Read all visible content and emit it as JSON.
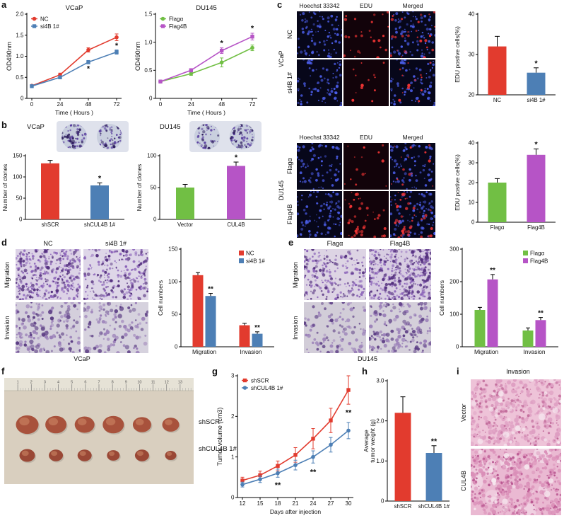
{
  "colors": {
    "red": "#e23b2e",
    "blue": "#4d7fb5",
    "green": "#71bf44",
    "purple": "#b654c6"
  },
  "panels": {
    "a": {
      "tag": "a"
    },
    "b": {
      "tag": "b",
      "left_title": "VCaP",
      "right_title": "DU145"
    },
    "c": {
      "tag": "c",
      "headers": [
        "Hoechst 33342",
        "EDU",
        "Merged"
      ],
      "top": {
        "side": "VCaP",
        "rows": [
          "NC",
          "si4B 1#"
        ]
      },
      "bottom": {
        "side": "DU145",
        "rows": [
          "Flagα",
          "Flag4B"
        ]
      }
    },
    "d": {
      "tag": "d",
      "cols": [
        "NC",
        "si4B 1#"
      ],
      "rows": [
        "Migration",
        "Invasion"
      ],
      "cell_line": "VCaP"
    },
    "e": {
      "tag": "e",
      "cols": [
        "Flagα",
        "Flag4B"
      ],
      "rows": [
        "Migration",
        "Invasion"
      ],
      "cell_line": "DU145"
    },
    "f": {
      "tag": "f",
      "labels": [
        "shSCR",
        "shCUL4B 1#"
      ],
      "ruler_numbers": [
        "1",
        "2",
        "3",
        "4",
        "5",
        "6",
        "7",
        "8",
        "9",
        "10",
        "11",
        "12",
        "13"
      ]
    },
    "g": {
      "tag": "g"
    },
    "h": {
      "tag": "h"
    },
    "i": {
      "tag": "i",
      "title": "Invasion",
      "rows": [
        "Vector",
        "CUL4B"
      ]
    }
  },
  "chart_data": [
    {
      "id": "a-left",
      "type": "line",
      "title": "VCaP",
      "xlabel": "Time ( Hours )",
      "ylabel": "OD490nm",
      "x": [
        0,
        24,
        48,
        72
      ],
      "ylim": [
        0,
        2.0
      ],
      "yticks": [
        0,
        0.5,
        1.0,
        1.5,
        2.0
      ],
      "ytick_labels": [
        "0",
        "0.5",
        "1.0",
        "1.5",
        "2.0"
      ],
      "legend_pos": "tl",
      "series": [
        {
          "name": "NC",
          "color": "#e23b2e",
          "marker": "circle",
          "values": [
            0.3,
            0.56,
            1.15,
            1.45
          ],
          "err": [
            0.02,
            0.04,
            0.05,
            0.08
          ]
        },
        {
          "name": "si4B 1#",
          "color": "#4d7fb5",
          "marker": "square",
          "values": [
            0.29,
            0.5,
            0.86,
            1.1
          ],
          "err": [
            0.02,
            0.03,
            0.04,
            0.05
          ]
        }
      ],
      "annotations": [
        {
          "x": 48,
          "y": 0.7,
          "text": "*"
        },
        {
          "x": 72,
          "y": 1.24,
          "text": "*"
        }
      ]
    },
    {
      "id": "a-right",
      "type": "line",
      "title": "DU145",
      "xlabel": "Time ( Hours )",
      "ylabel": "OD490nm",
      "x": [
        0,
        24,
        48,
        72
      ],
      "ylim": [
        0,
        1.5
      ],
      "yticks": [
        0,
        0.5,
        1.0,
        1.5
      ],
      "ytick_labels": [
        "0",
        "0.5",
        "1.0",
        "1.5"
      ],
      "legend_pos": "tl",
      "series": [
        {
          "name": "Flagα",
          "color": "#71bf44",
          "marker": "circle",
          "values": [
            0.3,
            0.44,
            0.64,
            0.9
          ],
          "err": [
            0.02,
            0.03,
            0.08,
            0.05
          ]
        },
        {
          "name": "Flag4B",
          "color": "#b654c6",
          "marker": "square",
          "values": [
            0.3,
            0.5,
            0.85,
            1.1
          ],
          "err": [
            0.02,
            0.03,
            0.05,
            0.06
          ]
        }
      ],
      "annotations": [
        {
          "x": 48,
          "y": 0.98,
          "text": "*"
        },
        {
          "x": 72,
          "y": 1.24,
          "text": "*"
        }
      ]
    },
    {
      "id": "b-left",
      "type": "bar",
      "tpad": 34,
      "ylabel": "Number of clones",
      "ylim": [
        0,
        150
      ],
      "yticks": [
        0,
        50,
        100,
        150
      ],
      "ytick_labels": [
        "0",
        "50",
        "100",
        "150"
      ],
      "categories": [
        "shSCR",
        "shCUL4B 1#"
      ],
      "values": [
        132,
        80
      ],
      "errors": [
        7,
        6
      ],
      "colors": [
        "#e23b2e",
        "#4d7fb5"
      ],
      "sig": [
        null,
        "*"
      ]
    },
    {
      "id": "b-right",
      "type": "bar",
      "tpad": 34,
      "ylabel": "Number of clones",
      "ylim": [
        0,
        100
      ],
      "yticks": [
        0,
        50,
        100
      ],
      "ytick_labels": [
        "0",
        "50",
        "100"
      ],
      "categories": [
        "Vector",
        "CUL4B"
      ],
      "values": [
        50,
        84
      ],
      "errors": [
        5,
        6
      ],
      "colors": [
        "#71bf44",
        "#b654c6"
      ],
      "sig": [
        null,
        "*"
      ]
    },
    {
      "id": "c-top",
      "type": "bar",
      "tpad": 14,
      "ylabel": "EDU postive cells(%)",
      "ylim": [
        20,
        40
      ],
      "yticks": [
        20,
        30,
        40
      ],
      "ytick_labels": [
        "20",
        "30",
        "40"
      ],
      "categories": [
        "NC",
        "si4B 1#"
      ],
      "values": [
        32,
        25.5
      ],
      "errors": [
        2.5,
        1.2
      ],
      "colors": [
        "#e23b2e",
        "#4d7fb5"
      ],
      "sig": [
        null,
        "*"
      ]
    },
    {
      "id": "c-bottom",
      "type": "bar",
      "tpad": 14,
      "ylabel": "EDU postive cells(%)",
      "ylim": [
        0,
        40
      ],
      "yticks": [
        0,
        10,
        20,
        30,
        40
      ],
      "ytick_labels": [
        "0",
        "10",
        "20",
        "30",
        "40"
      ],
      "categories": [
        "Flagα",
        "Flag4B"
      ],
      "values": [
        20,
        34
      ],
      "errors": [
        2,
        3
      ],
      "colors": [
        "#71bf44",
        "#b654c6"
      ],
      "sig": [
        null,
        "*"
      ]
    },
    {
      "id": "d-bar",
      "type": "groupbar",
      "ylabel": "Cell numbers",
      "ylim": [
        0,
        150
      ],
      "yticks": [
        0,
        50,
        100,
        150
      ],
      "ytick_labels": [
        "0",
        "50",
        "100",
        "150"
      ],
      "categories": [
        "Migration",
        "Invasion"
      ],
      "legend_pos": "tr",
      "series": [
        {
          "name": "NC",
          "color": "#e23b2e",
          "values": [
            110,
            33
          ],
          "err": [
            4,
            3
          ],
          "sig": [
            null,
            null
          ]
        },
        {
          "name": "si4B 1#",
          "color": "#4d7fb5",
          "values": [
            78,
            20
          ],
          "err": [
            4,
            3
          ],
          "sig": [
            "**",
            "**"
          ]
        }
      ]
    },
    {
      "id": "e-bar",
      "type": "groupbar",
      "ylabel": "Cell numbers",
      "ylim": [
        0,
        300
      ],
      "yticks": [
        0,
        100,
        200,
        300
      ],
      "ytick_labels": [
        "0",
        "100",
        "200",
        "300"
      ],
      "categories": [
        "Migration",
        "Invasion"
      ],
      "legend_pos": "tr",
      "series": [
        {
          "name": "Flagα",
          "color": "#71bf44",
          "values": [
            113,
            50
          ],
          "err": [
            8,
            8
          ],
          "sig": [
            null,
            null
          ]
        },
        {
          "name": "Flag4B",
          "color": "#b654c6",
          "values": [
            207,
            82
          ],
          "err": [
            15,
            8
          ],
          "sig": [
            "**",
            "**"
          ]
        }
      ]
    },
    {
      "id": "g-line",
      "type": "line",
      "xlabel": "Days after injection",
      "ylabel": "Tumor volume (cm3)",
      "x": [
        12,
        15,
        18,
        21,
        24,
        27,
        30
      ],
      "ylim": [
        0,
        3
      ],
      "yticks": [
        0,
        1,
        2,
        3
      ],
      "ytick_labels": [
        "0",
        "1",
        "2",
        "3"
      ],
      "legend_pos": "tl",
      "series": [
        {
          "name": "shSCR",
          "color": "#e23b2e",
          "marker": "square",
          "values": [
            0.42,
            0.55,
            0.78,
            1.05,
            1.45,
            1.9,
            2.65
          ],
          "err": [
            0.08,
            0.1,
            0.12,
            0.18,
            0.25,
            0.3,
            0.35
          ]
        },
        {
          "name": "shCUL4B 1#",
          "color": "#4d7fb5",
          "marker": "circle",
          "values": [
            0.32,
            0.45,
            0.6,
            0.8,
            1.0,
            1.3,
            1.65
          ],
          "err": [
            0.06,
            0.08,
            0.1,
            0.12,
            0.15,
            0.18,
            0.2
          ]
        }
      ],
      "annotations": [
        {
          "x": 18,
          "y": 0.3,
          "text": "**"
        },
        {
          "x": 24,
          "y": 0.62,
          "text": "**"
        },
        {
          "x": 30,
          "y": 2.08,
          "text": "**"
        }
      ]
    },
    {
      "id": "h-bar",
      "type": "bar",
      "tpad": 16,
      "ylabel": [
        "Average",
        "tumor weight (g)"
      ],
      "ylim": [
        0,
        3
      ],
      "yticks": [
        0,
        1,
        2,
        3
      ],
      "ytick_labels": [
        "0",
        "1.0",
        "2.0",
        "3.0"
      ],
      "categories": [
        "shSCR",
        "shCUL4B 1#"
      ],
      "values": [
        2.2,
        1.2
      ],
      "errors": [
        0.4,
        0.18
      ],
      "colors": [
        "#e23b2e",
        "#4d7fb5"
      ],
      "sig": [
        null,
        "**"
      ]
    }
  ],
  "micrographs": {
    "vcap-nc-hoechst": {
      "bg": "#07071a",
      "layers": [
        {
          "c": "#4b5de8",
          "n": 85,
          "r": 1.5,
          "seed": 101
        }
      ]
    },
    "vcap-nc-edu": {
      "bg": "#12030a",
      "layers": [
        {
          "c": "#f03434",
          "n": 26,
          "r": 1.6,
          "seed": 102
        }
      ]
    },
    "vcap-nc-merged": {
      "bg": "#07071a",
      "layers": [
        {
          "c": "#4b5de8",
          "n": 85,
          "r": 1.5,
          "seed": 101
        },
        {
          "c": "#f03434",
          "n": 26,
          "r": 1.6,
          "seed": 102
        }
      ]
    },
    "vcap-si4b-hoechst": {
      "bg": "#07071a",
      "layers": [
        {
          "c": "#4b5de8",
          "n": 78,
          "r": 1.5,
          "seed": 103
        }
      ]
    },
    "vcap-si4b-edu": {
      "bg": "#12030a",
      "layers": [
        {
          "c": "#f03434",
          "n": 13,
          "r": 1.6,
          "seed": 104
        }
      ]
    },
    "vcap-si4b-merged": {
      "bg": "#07071a",
      "layers": [
        {
          "c": "#4b5de8",
          "n": 78,
          "r": 1.5,
          "seed": 103
        },
        {
          "c": "#f03434",
          "n": 13,
          "r": 1.6,
          "seed": 104
        }
      ]
    },
    "du-flaga-hoechst": {
      "bg": "#07071a",
      "layers": [
        {
          "c": "#4b5de8",
          "n": 70,
          "r": 1.5,
          "seed": 105
        }
      ]
    },
    "du-flaga-edu": {
      "bg": "#12030a",
      "layers": [
        {
          "c": "#f03434",
          "n": 14,
          "r": 1.6,
          "seed": 106
        }
      ]
    },
    "du-flaga-merged": {
      "bg": "#07071a",
      "layers": [
        {
          "c": "#4b5de8",
          "n": 70,
          "r": 1.5,
          "seed": 105
        },
        {
          "c": "#f03434",
          "n": 14,
          "r": 1.6,
          "seed": 106
        }
      ]
    },
    "du-flag4b-hoechst": {
      "bg": "#07071a",
      "layers": [
        {
          "c": "#4b5de8",
          "n": 95,
          "r": 1.5,
          "seed": 107
        }
      ]
    },
    "du-flag4b-edu": {
      "bg": "#12030a",
      "layers": [
        {
          "c": "#f03434",
          "n": 40,
          "r": 1.6,
          "seed": 108
        }
      ]
    },
    "du-flag4b-merged": {
      "bg": "#07071a",
      "layers": [
        {
          "c": "#4b5de8",
          "n": 95,
          "r": 1.5,
          "seed": 107
        },
        {
          "c": "#f03434",
          "n": 40,
          "r": 1.6,
          "seed": 108
        }
      ]
    },
    "d-mig-nc": {
      "bg": "#dcd2e6",
      "layers": [
        {
          "c": "#8a62b8",
          "n": 240,
          "r": 1.4,
          "seed": 201
        },
        {
          "c": "#54307e",
          "n": 130,
          "r": 1.7,
          "seed": 202
        }
      ]
    },
    "d-mig-si4b": {
      "bg": "#ded6e8",
      "layers": [
        {
          "c": "#8a62b8",
          "n": 160,
          "r": 1.4,
          "seed": 203
        },
        {
          "c": "#54307e",
          "n": 90,
          "r": 1.7,
          "seed": 204
        }
      ]
    },
    "d-inv-nc": {
      "bg": "#d4cfdc",
      "layers": [
        {
          "c": "#9a7fb8",
          "n": 110,
          "r": 2.0,
          "seed": 205
        },
        {
          "c": "#5d3f85",
          "n": 60,
          "r": 2.2,
          "seed": 206
        }
      ]
    },
    "d-inv-si4b": {
      "bg": "#d6d2de",
      "layers": [
        {
          "c": "#9a7fb8",
          "n": 80,
          "r": 2.0,
          "seed": 207
        },
        {
          "c": "#5d3f85",
          "n": 40,
          "r": 2.2,
          "seed": 208
        }
      ]
    },
    "e-mig-flaga": {
      "bg": "#ddd4e4",
      "layers": [
        {
          "c": "#8a62b8",
          "n": 150,
          "r": 1.4,
          "seed": 211
        },
        {
          "c": "#54307e",
          "n": 80,
          "r": 1.6,
          "seed": 212
        }
      ]
    },
    "e-mig-flag4b": {
      "bg": "#d8cde2",
      "layers": [
        {
          "c": "#8a62b8",
          "n": 280,
          "r": 1.4,
          "seed": 213
        },
        {
          "c": "#54307e",
          "n": 150,
          "r": 1.7,
          "seed": 214
        }
      ]
    },
    "e-inv-flaga": {
      "bg": "#d2cdd8",
      "layers": [
        {
          "c": "#9a7fb8",
          "n": 70,
          "r": 2.0,
          "seed": 215
        },
        {
          "c": "#5d3f85",
          "n": 35,
          "r": 2.0,
          "seed": 216
        }
      ]
    },
    "e-inv-flag4b": {
      "bg": "#d4cfda",
      "layers": [
        {
          "c": "#9a7fb8",
          "n": 120,
          "r": 2.0,
          "seed": 217
        },
        {
          "c": "#5d3f85",
          "n": 60,
          "r": 2.2,
          "seed": 218
        }
      ]
    },
    "dish-1a": {
      "bg": "#c7cddd",
      "layers": [
        {
          "c": "#5a3fa0",
          "n": 60,
          "r": 1.3,
          "seed": 301
        },
        {
          "c": "#2e1e5e",
          "n": 25,
          "r": 1.7,
          "seed": 302
        }
      ]
    },
    "dish-1b": {
      "bg": "#c9cfde",
      "layers": [
        {
          "c": "#5a3fa0",
          "n": 50,
          "r": 1.3,
          "seed": 303
        },
        {
          "c": "#2e1e5e",
          "n": 20,
          "r": 1.7,
          "seed": 304
        }
      ]
    },
    "dish-2a": {
      "bg": "#c9cfde",
      "layers": [
        {
          "c": "#5a3fa0",
          "n": 35,
          "r": 1.3,
          "seed": 305
        },
        {
          "c": "#2e1e5e",
          "n": 14,
          "r": 1.7,
          "seed": 306
        }
      ]
    },
    "dish-2b": {
      "bg": "#c7cddd",
      "layers": [
        {
          "c": "#5a3fa0",
          "n": 60,
          "r": 1.3,
          "seed": 307
        },
        {
          "c": "#2e1e5e",
          "n": 26,
          "r": 1.7,
          "seed": 308
        }
      ]
    },
    "hist-vector": {
      "bg": "#eec3d8",
      "layers": [
        {
          "c": "#de9ec2",
          "n": 260,
          "r": 2.4,
          "seed": 401
        },
        {
          "c": "#c06898",
          "n": 160,
          "r": 1.4,
          "seed": 402
        },
        {
          "c": "#f6e8ef",
          "n": 26,
          "r": 3.5,
          "seed": 403
        }
      ]
    },
    "hist-cul4b": {
      "bg": "#eab9d2",
      "layers": [
        {
          "c": "#f2d8e6",
          "n": 10,
          "r": 9.0,
          "seed": 407
        },
        {
          "c": "#da8fb8",
          "n": 300,
          "r": 2.4,
          "seed": 404
        },
        {
          "c": "#b85590",
          "n": 180,
          "r": 1.4,
          "seed": 405
        },
        {
          "c": "#f6e8ef",
          "n": 18,
          "r": 3.0,
          "seed": 406
        }
      ]
    }
  },
  "tumor_photo": {
    "bg": "#d9cfbf",
    "ruler_bg": "#e6e2d6",
    "rows": [
      {
        "y": 0.44,
        "color": "#a8523c",
        "sizes": [
          16,
          15,
          14,
          15,
          13,
          12
        ]
      },
      {
        "y": 0.73,
        "color": "#9a4836",
        "sizes": [
          11,
          10,
          10,
          9,
          10,
          8
        ]
      }
    ]
  }
}
